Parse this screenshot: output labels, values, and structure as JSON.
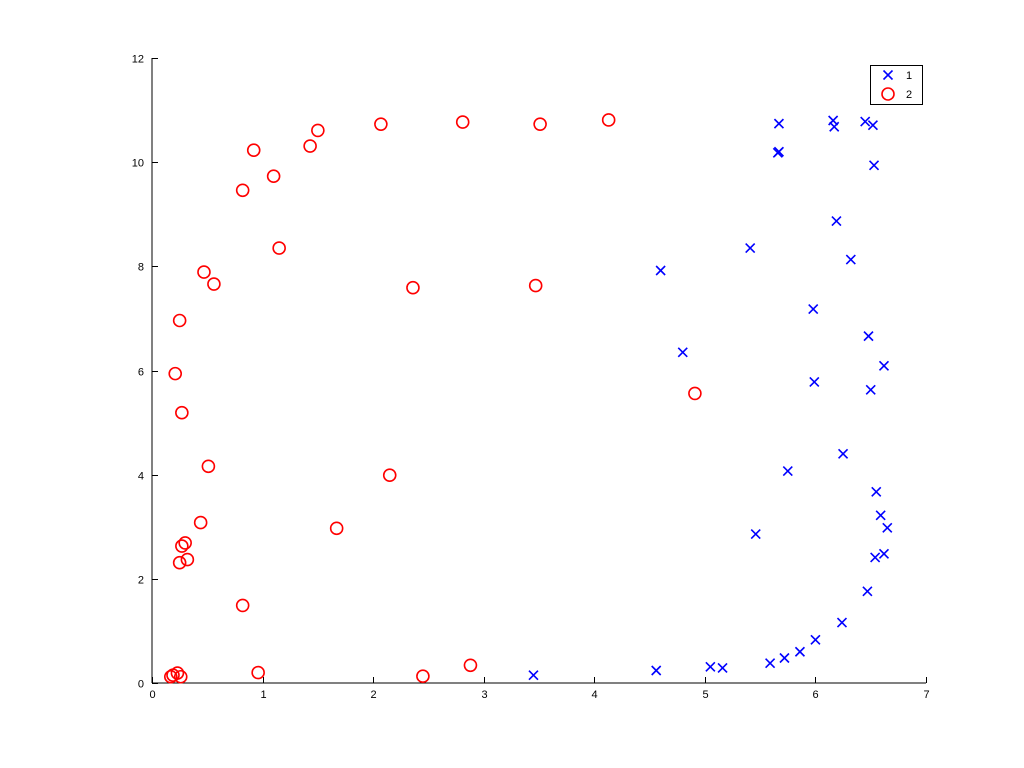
{
  "chart_data": {
    "type": "scatter",
    "title": "",
    "xlabel": "",
    "ylabel": "",
    "xlim": [
      0,
      7
    ],
    "ylim": [
      0,
      12
    ],
    "xticks": [
      "0",
      "1",
      "2",
      "3",
      "4",
      "5",
      "6",
      "7"
    ],
    "yticks": [
      "0",
      "2",
      "4",
      "6",
      "8",
      "10",
      "12"
    ],
    "grid": false,
    "legend_position": "top-right",
    "series": [
      {
        "name": "1",
        "marker": "x",
        "color": "#0000ff",
        "points": [
          [
            3.45,
            0.15
          ],
          [
            4.56,
            0.24
          ],
          [
            5.05,
            0.31
          ],
          [
            5.16,
            0.29
          ],
          [
            5.59,
            0.38
          ],
          [
            5.72,
            0.48
          ],
          [
            5.86,
            0.6
          ],
          [
            6.0,
            0.83
          ],
          [
            6.24,
            1.16
          ],
          [
            6.47,
            1.76
          ],
          [
            6.54,
            2.41
          ],
          [
            6.62,
            2.48
          ],
          [
            6.65,
            2.98
          ],
          [
            6.59,
            3.22
          ],
          [
            6.55,
            3.67
          ],
          [
            6.25,
            4.4
          ],
          [
            5.46,
            2.86
          ],
          [
            5.75,
            4.07
          ],
          [
            6.5,
            5.63
          ],
          [
            6.62,
            6.09
          ],
          [
            5.99,
            5.78
          ],
          [
            6.48,
            6.66
          ],
          [
            5.98,
            7.18
          ],
          [
            4.8,
            6.35
          ],
          [
            4.6,
            7.92
          ],
          [
            6.32,
            8.13
          ],
          [
            5.41,
            8.35
          ],
          [
            6.19,
            8.87
          ],
          [
            6.53,
            9.94
          ],
          [
            5.66,
            10.18
          ],
          [
            5.67,
            10.2
          ],
          [
            5.67,
            10.74
          ],
          [
            6.16,
            10.8
          ],
          [
            6.17,
            10.68
          ],
          [
            6.45,
            10.78
          ],
          [
            6.52,
            10.71
          ]
        ]
      },
      {
        "name": "2",
        "marker": "o",
        "color": "#ff0000",
        "points": [
          [
            0.17,
            0.12
          ],
          [
            0.19,
            0.15
          ],
          [
            0.23,
            0.19
          ],
          [
            0.26,
            0.12
          ],
          [
            0.96,
            0.2
          ],
          [
            2.45,
            0.13
          ],
          [
            2.88,
            0.34
          ],
          [
            0.82,
            1.49
          ],
          [
            0.25,
            2.31
          ],
          [
            0.27,
            2.63
          ],
          [
            0.3,
            2.69
          ],
          [
            0.32,
            2.37
          ],
          [
            0.44,
            3.08
          ],
          [
            0.51,
            4.16
          ],
          [
            0.27,
            5.19
          ],
          [
            0.21,
            5.94
          ],
          [
            0.25,
            6.96
          ],
          [
            0.47,
            7.89
          ],
          [
            0.56,
            7.66
          ],
          [
            0.82,
            9.46
          ],
          [
            0.92,
            10.23
          ],
          [
            1.1,
            9.73
          ],
          [
            1.15,
            8.35
          ],
          [
            1.43,
            10.31
          ],
          [
            1.5,
            10.61
          ],
          [
            1.67,
            2.97
          ],
          [
            2.15,
            3.99
          ],
          [
            2.07,
            10.73
          ],
          [
            2.36,
            7.59
          ],
          [
            2.81,
            10.77
          ],
          [
            3.47,
            7.63
          ],
          [
            3.51,
            10.73
          ],
          [
            4.13,
            10.81
          ],
          [
            4.91,
            5.56
          ]
        ]
      }
    ]
  }
}
